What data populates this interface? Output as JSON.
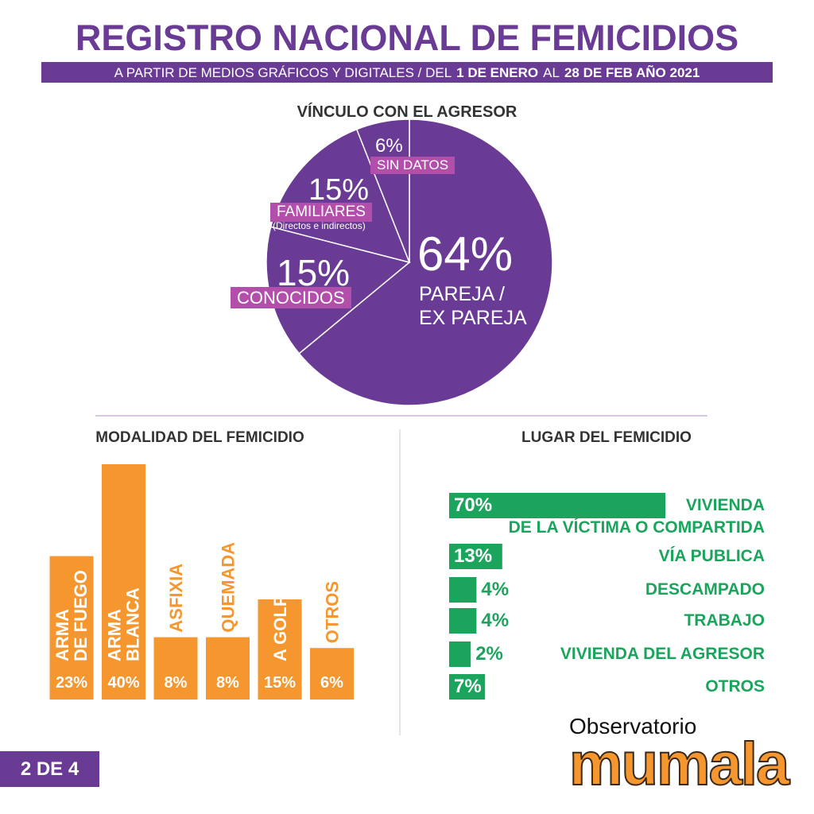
{
  "header": {
    "title": "REGISTRO NACIONAL DE FEMICIDIOS",
    "subtitle": [
      "A PARTIR DE MEDIOS GRÁFICOS Y DIGITALES / DEL",
      "1 DE ENERO",
      "AL",
      "28 DE FEB AÑO 2021"
    ]
  },
  "chart_data": [
    {
      "type": "pie",
      "title": "VÍNCULO CON EL AGRESOR",
      "categories": [
        "PAREJA /\nEX PAREJA",
        "CONOCIDOS",
        "FAMILIARES",
        "SIN DATOS"
      ],
      "sublabels": [
        null,
        null,
        "(Directos e indirectos)",
        null
      ],
      "values": [
        64,
        15,
        15,
        6
      ],
      "value_labels": [
        "64%",
        "15%",
        "15%",
        "6%"
      ],
      "color": "#6a3b94",
      "label_color": "#b24fab"
    },
    {
      "type": "bar",
      "title": "MODALIDAD DEL FEMICIDIO",
      "categories": [
        "ARMA\nDE FUEGO",
        "ARMA\nBLANCA",
        "ASFIXIA",
        "QUEMADA",
        "A GOLPES",
        "OTROS"
      ],
      "values": [
        23,
        40,
        8,
        8,
        15,
        6
      ],
      "value_labels": [
        "23%",
        "40%",
        "8%",
        "8%",
        "15%",
        "6%"
      ],
      "color": "#f5962f"
    },
    {
      "type": "hbar",
      "title": "LUGAR DEL FEMICIDIO",
      "categories": [
        "VIVIENDA\nDE LA VÍCTIMA O COMPARTIDA",
        "VÍA PUBLICA",
        "DESCAMPADO",
        "TRABAJO",
        "VIVIENDA DEL AGRESOR",
        "OTROS"
      ],
      "values": [
        70,
        13,
        4,
        4,
        2,
        7
      ],
      "value_labels": [
        "70%",
        "13%",
        "4%",
        "4%",
        "2%",
        "7%"
      ],
      "color": "#1ba55c"
    }
  ],
  "page_label": "2 DE 4",
  "logo": {
    "line1": "Observatorio",
    "line2": "mumala"
  }
}
